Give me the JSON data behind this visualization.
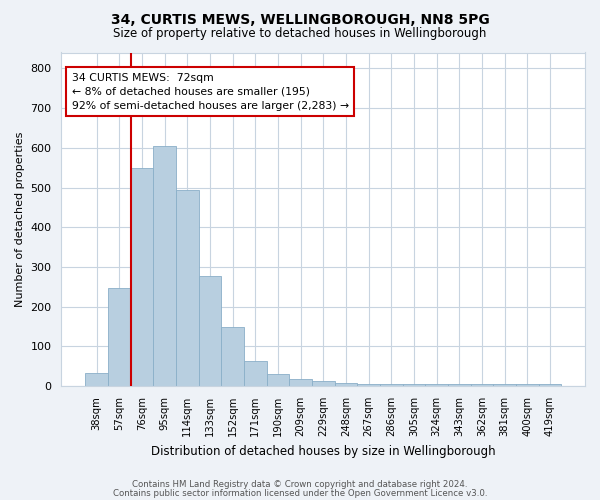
{
  "title": "34, CURTIS MEWS, WELLINGBOROUGH, NN8 5PG",
  "subtitle": "Size of property relative to detached houses in Wellingborough",
  "xlabel": "Distribution of detached houses by size in Wellingborough",
  "ylabel": "Number of detached properties",
  "categories": [
    "38sqm",
    "57sqm",
    "76sqm",
    "95sqm",
    "114sqm",
    "133sqm",
    "152sqm",
    "171sqm",
    "190sqm",
    "209sqm",
    "229sqm",
    "248sqm",
    "267sqm",
    "286sqm",
    "305sqm",
    "324sqm",
    "343sqm",
    "362sqm",
    "381sqm",
    "400sqm",
    "419sqm"
  ],
  "bar_values": [
    32,
    248,
    549,
    605,
    493,
    278,
    148,
    63,
    30,
    18,
    12,
    7,
    5,
    5,
    5,
    5,
    5,
    5,
    5,
    5,
    5
  ],
  "normal_color": "#b8cfe0",
  "bar_edge_color": "#8aafc8",
  "red_line_x": 1.5,
  "annotation_text": "34 CURTIS MEWS:  72sqm\n← 8% of detached houses are smaller (195)\n92% of semi-detached houses are larger (2,283) →",
  "annotation_box_color": "#ffffff",
  "annotation_box_edge": "#cc0000",
  "ylim": [
    0,
    840
  ],
  "yticks": [
    0,
    100,
    200,
    300,
    400,
    500,
    600,
    700,
    800
  ],
  "footer1": "Contains HM Land Registry data © Crown copyright and database right 2024.",
  "footer2": "Contains public sector information licensed under the Open Government Licence v3.0.",
  "bg_color": "#eef2f7",
  "plot_bg_color": "#ffffff",
  "grid_color": "#c8d4e0"
}
